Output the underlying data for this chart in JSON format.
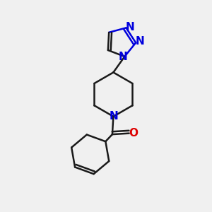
{
  "bg_color": "#f0f0f0",
  "bond_color": "#1a1a1a",
  "nitrogen_color": "#0000dd",
  "oxygen_color": "#dd0000",
  "bond_width": 1.8,
  "font_size": 10,
  "fig_size": [
    3.0,
    3.0
  ],
  "dpi": 100,
  "xlim": [
    0,
    10
  ],
  "ylim": [
    0,
    10
  ]
}
